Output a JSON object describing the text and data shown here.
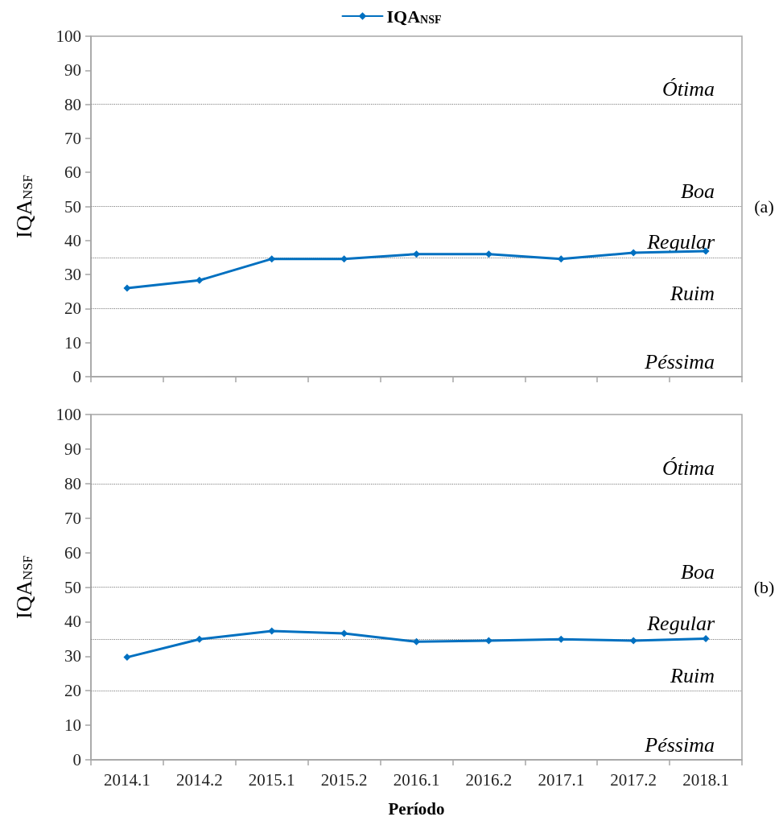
{
  "chart_data": [
    {
      "type": "line",
      "ylabel": "IQA$_{NSF}$",
      "legend": "top",
      "tick_labels": "y",
      "grid": false,
      "marker": "diamond",
      "line_style": "solid",
      "categories": [
        "2014.1",
        "2014.2",
        "2015.1",
        "2015.2",
        "2016.1",
        "2016.2",
        "2017.1",
        "2017.2",
        "2018.1"
      ],
      "series": [
        {
          "name": "IQA$_{NSF}$",
          "color": "#0070c0",
          "values": [
            26.0,
            28.3,
            34.6,
            34.6,
            36.0,
            36.0,
            34.6,
            36.4,
            36.9
          ]
        }
      ],
      "ylim": [
        0,
        100
      ],
      "yticks": [
        0,
        10,
        20,
        30,
        40,
        50,
        60,
        70,
        80,
        90,
        100
      ],
      "ref_lines": [
        {
          "axis": "y",
          "value": 80,
          "label": "Ótima",
          "color": "#808080",
          "line_style": "dotted"
        },
        {
          "axis": "y",
          "value": 50,
          "label": "Boa",
          "color": "#808080",
          "line_style": "dotted"
        },
        {
          "axis": "y",
          "value": 35,
          "label": "Regular",
          "color": "#808080",
          "line_style": "dotted"
        },
        {
          "axis": "y",
          "value": 20,
          "label": "Ruim",
          "color": "#808080",
          "line_style": "dotted"
        },
        {
          "axis": "y",
          "value": 0,
          "label": "Péssima",
          "color": "#a6a6a6",
          "line_style": "solid"
        }
      ],
      "annotations": [
        "(a)"
      ]
    },
    {
      "type": "line",
      "ylabel": "IQA$_{NSF}$",
      "xlabel": "Período",
      "legend": false,
      "grid": false,
      "marker": "diamond",
      "line_style": "solid",
      "categories": [
        "2014.1",
        "2014.2",
        "2015.1",
        "2015.2",
        "2016.1",
        "2016.2",
        "2017.1",
        "2017.2",
        "2018.1"
      ],
      "series": [
        {
          "color": "#0070c0",
          "values": [
            29.7,
            34.9,
            37.3,
            36.6,
            34.2,
            34.5,
            34.9,
            34.5,
            35.1
          ]
        }
      ],
      "ylim": [
        0,
        100
      ],
      "yticks": [
        0,
        10,
        20,
        30,
        40,
        50,
        60,
        70,
        80,
        90,
        100
      ],
      "ref_lines": [
        {
          "axis": "y",
          "value": 80,
          "label": "Ótima",
          "color": "#808080",
          "line_style": "dotted"
        },
        {
          "axis": "y",
          "value": 50,
          "label": "Boa",
          "color": "#808080",
          "line_style": "dotted"
        },
        {
          "axis": "y",
          "value": 35,
          "label": "Regular",
          "color": "#808080",
          "line_style": "dotted"
        },
        {
          "axis": "y",
          "value": 20,
          "label": "Ruim",
          "color": "#808080",
          "line_style": "dotted"
        },
        {
          "axis": "y",
          "value": 0,
          "label": "Péssima",
          "color": "#a6a6a6",
          "line_style": "solid"
        }
      ],
      "annotations": [
        "(b)"
      ]
    }
  ]
}
